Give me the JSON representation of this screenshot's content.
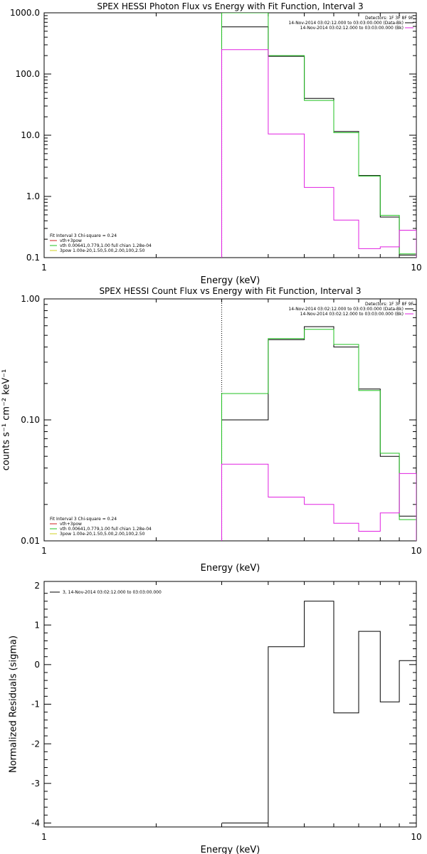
{
  "chart_data": [
    {
      "type": "line",
      "title": "SPEX HESSI Photon Flux vs Energy with Fit Function, Interval 3",
      "xlabel": "Energy (keV)",
      "ylabel": "",
      "xscale": "log",
      "yscale": "log",
      "xlim": [
        1,
        10
      ],
      "ylim": [
        0.1,
        1000
      ],
      "xticks": [
        "1",
        "10"
      ],
      "yticks": [
        "0.1",
        "1.0",
        "10.0",
        "100.0",
        "1000.0"
      ],
      "legend_top_right": {
        "detectors": "Detectors: 1F 3F 8F 9F",
        "entries": [
          {
            "label": "14-Nov-2014 03:02:12.000 to 03:03:00.000 (Data-Bk)",
            "color": "#000000"
          },
          {
            "label": "14-Nov-2014 03:02:12.000 to 03:03:00.000 (Bk)",
            "color": "#e020e0"
          }
        ]
      },
      "legend_bottom_left": {
        "header": "Fit Interval 3   Chi-square = 0.24",
        "entries": [
          {
            "label": "vth+3pow",
            "color": "#d02020"
          },
          {
            "label": "vth 0.00641,0.779,1.00  full chian 1.28e-04",
            "color": "#20c020"
          },
          {
            "label": "3pow 1.00e-20,1.50,5.00,2.00,100,2.50",
            "color": "#d0d020"
          }
        ]
      },
      "vline_x": 3,
      "edges": [
        3,
        4,
        5,
        6,
        7,
        8,
        9,
        10
      ],
      "series": [
        {
          "name": "14-Nov-2014 03:02:12.000 to 03:03:00.000 (Data-Bk)",
          "color": "#000000",
          "values": [
            590,
            195,
            40,
            11.5,
            2.2,
            0.46,
            0.11
          ]
        },
        {
          "name": "vth+3pow",
          "color": "#20c020",
          "values": [
            1000,
            200,
            37,
            11,
            2.15,
            0.49,
            0.115
          ]
        },
        {
          "name": "14-Nov-2014 03:02:12.000 to 03:03:00.000 (Bk)",
          "color": "#e020e0",
          "values": [
            250,
            10.5,
            1.4,
            0.41,
            0.14,
            0.15,
            0.28
          ]
        }
      ]
    },
    {
      "type": "line",
      "title": "SPEX HESSI Count Flux vs Energy with Fit Function, Interval 3",
      "xlabel": "Energy (keV)",
      "ylabel": "counts s⁻¹ cm⁻² keV⁻¹",
      "xscale": "log",
      "yscale": "log",
      "xlim": [
        1,
        10
      ],
      "ylim": [
        0.01,
        1.0
      ],
      "xticks": [
        "1",
        "10"
      ],
      "yticks": [
        "0.01",
        "0.10",
        "1.00"
      ],
      "legend_top_right": {
        "detectors": "Detectors: 1F 3F 8F 9F",
        "entries": [
          {
            "label": "14-Nov-2014 03:02:12.000 to 03:03:00.000 (Data-Bk)",
            "color": "#000000"
          },
          {
            "label": "14-Nov-2014 03:02:12.000 to 03:03:00.000 (Bk)",
            "color": "#e020e0"
          }
        ]
      },
      "legend_bottom_left": {
        "header": "Fit Interval 3   Chi-square = 0.24",
        "entries": [
          {
            "label": "vth+3pow",
            "color": "#d02020"
          },
          {
            "label": "vth 0.00641,0.779,1.00  full chian 1.28e-04",
            "color": "#20c020"
          },
          {
            "label": "3pow 1.00e-20,1.50,5.00,2.00,100,2.50",
            "color": "#d0d020"
          }
        ]
      },
      "vline_x": 3,
      "edges": [
        3,
        4,
        5,
        6,
        7,
        8,
        9,
        10
      ],
      "series": [
        {
          "name": "14-Nov-2014 03:02:12.000 to 03:03:00.000 (Data-Bk)",
          "color": "#000000",
          "values": [
            0.1,
            0.46,
            0.59,
            0.4,
            0.18,
            0.05,
            0.016
          ]
        },
        {
          "name": "vth+3pow",
          "color": "#20c020",
          "values": [
            0.165,
            0.47,
            0.56,
            0.42,
            0.175,
            0.053,
            0.015
          ]
        },
        {
          "name": "14-Nov-2014 03:02:12.000 to 03:03:00.000 (Bk)",
          "color": "#e020e0",
          "values": [
            0.043,
            0.023,
            0.02,
            0.014,
            0.012,
            0.017,
            0.036
          ]
        }
      ]
    },
    {
      "type": "line",
      "title": "",
      "xlabel": "Energy (keV)",
      "ylabel": "Normalized Residuals (sigma)",
      "xscale": "log",
      "yscale": "linear",
      "xlim": [
        1,
        10
      ],
      "ylim": [
        -4.1,
        2.1
      ],
      "xticks": [
        "1",
        "10"
      ],
      "yticks": [
        "-4",
        "-3",
        "-2",
        "-1",
        "0",
        "1",
        "2"
      ],
      "legend_top_left": {
        "entries": [
          {
            "label": "3, 14-Nov-2014 03:02:12.000 to 03:03:00.000",
            "color": "#000000"
          }
        ]
      },
      "edges": [
        3,
        4,
        5,
        6,
        7,
        8,
        9,
        10
      ],
      "series": [
        {
          "name": "3, 14-Nov-2014 03:02:12.000 to 03:03:00.000",
          "color": "#000000",
          "values": [
            -4.0,
            0.45,
            1.6,
            -1.22,
            0.84,
            -0.94,
            0.1
          ]
        }
      ]
    }
  ]
}
